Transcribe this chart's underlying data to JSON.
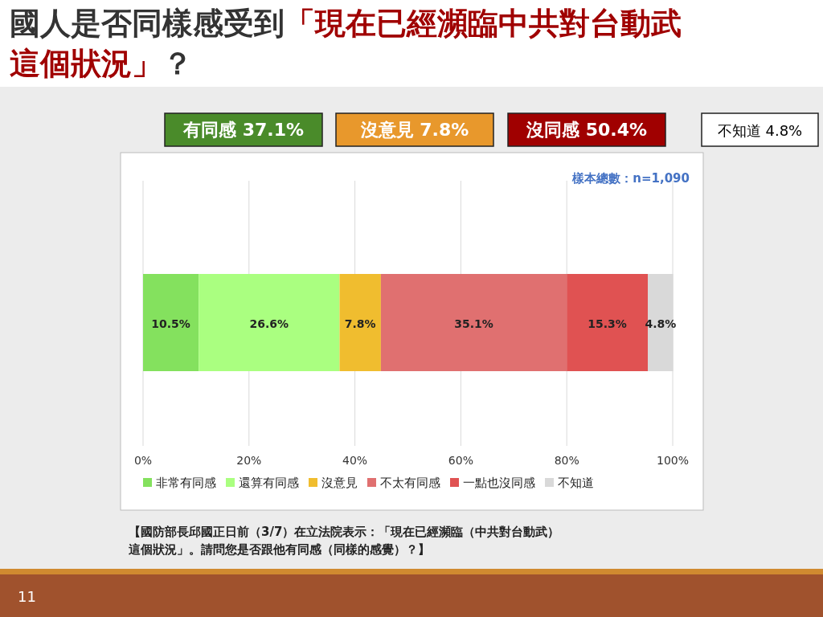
{
  "chart_data": {
    "type": "bar",
    "orientation": "horizontal",
    "stacked": true,
    "title": "國人是否同樣感受到「現在已經瀕臨中共對台動武這個狀況」？",
    "categories": [
      null
    ],
    "series": [
      {
        "name": "非常有同感",
        "color": "#84e15e",
        "values": [
          10.5
        ]
      },
      {
        "name": "還算有同感",
        "color": "#aaff80",
        "values": [
          26.6
        ]
      },
      {
        "name": "沒意見",
        "color": "#f0bd2f",
        "values": [
          7.8
        ]
      },
      {
        "name": "不太有同感",
        "color": "#e07070",
        "values": [
          35.1
        ]
      },
      {
        "name": "一點也沒同感",
        "color": "#e05252",
        "values": [
          15.3
        ]
      },
      {
        "name": "不知道",
        "color": "#d9d9d9",
        "values": [
          4.8
        ]
      }
    ],
    "xlim": [
      0,
      100
    ],
    "xticks": [
      {
        "value": 0,
        "label": "0%"
      },
      {
        "value": 20,
        "label": "20%"
      },
      {
        "value": 40,
        "label": "40%"
      },
      {
        "value": 60,
        "label": "60%"
      },
      {
        "value": 80,
        "label": "80%"
      },
      {
        "value": 100,
        "label": "100%"
      }
    ],
    "grid": "x",
    "legend": "bottom",
    "value_labels": [
      "10.5%",
      "26.6%",
      "7.8%",
      "35.1%",
      "15.3%",
      "4.8%"
    ],
    "annotations": [
      "有同感 37.1%",
      "沒意見 7.8%",
      "沒同感 50.4%",
      "不知道 4.8%",
      "樣本總數：n=1,090",
      "【國防部長邱國正日前（3/7）在立法院表示：「現在已經瀕臨（中共對台動武）這個狀況」。請問您是否跟他有同感（同樣的感覺）？】",
      "11"
    ]
  }
}
